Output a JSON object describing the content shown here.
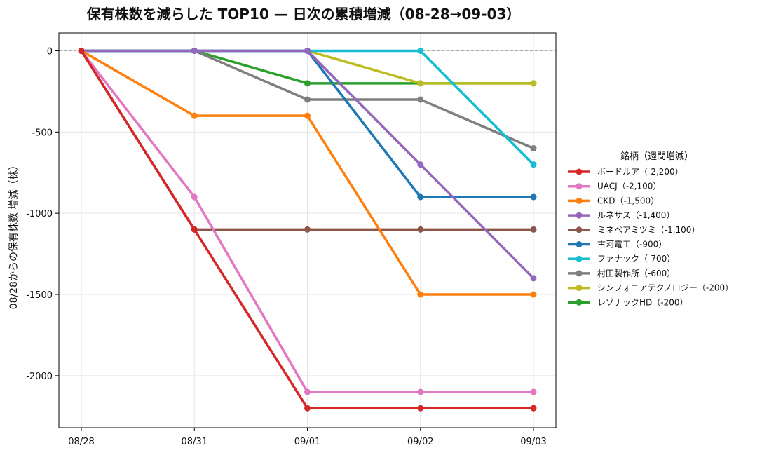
{
  "chart_data": {
    "type": "line",
    "title": "保有株数を減らした TOP10 — 日次の累積増減（08-28→09-03）",
    "xlabel": "",
    "ylabel": "08/28からの保有株数 増減（株）",
    "x": [
      "08/28",
      "08/31",
      "09/01",
      "09/02",
      "09/03"
    ],
    "yticks": [
      0,
      -500,
      -1000,
      -1500,
      -2000
    ],
    "ytick_labels": [
      "0",
      "-500",
      "-1000",
      "-1500",
      "-2000"
    ],
    "ylim": [
      -2320,
      110
    ],
    "grid": true,
    "baseline": 0,
    "legend": {
      "title": "銘柄（週間増減）",
      "placement": "right"
    },
    "series": [
      {
        "name": "ボードルア（-2,200）",
        "color": "#d62728",
        "values": [
          0,
          -1100,
          -2200,
          -2200,
          -2200
        ]
      },
      {
        "name": "UACJ（-2,100）",
        "color": "#e377c2",
        "values": [
          0,
          -900,
          -2100,
          -2100,
          -2100
        ]
      },
      {
        "name": "CKD（-1,500）",
        "color": "#ff7f0e",
        "values": [
          0,
          -400,
          -400,
          -1500,
          -1500
        ]
      },
      {
        "name": "ルネサス（-1,400）",
        "color": "#9467bd",
        "values": [
          0,
          0,
          0,
          -700,
          -1400
        ]
      },
      {
        "name": "ミネベアミツミ（-1,100）",
        "color": "#8c564b",
        "values": [
          0,
          -1100,
          -1100,
          -1100,
          -1100
        ]
      },
      {
        "name": "古河電工（-900）",
        "color": "#1f77b4",
        "values": [
          0,
          0,
          0,
          -900,
          -900
        ]
      },
      {
        "name": "ファナック（-700）",
        "color": "#17becf",
        "values": [
          0,
          0,
          0,
          0,
          -700
        ]
      },
      {
        "name": "村田製作所（-600）",
        "color": "#7f7f7f",
        "values": [
          0,
          0,
          -300,
          -300,
          -600
        ]
      },
      {
        "name": "シンフォニアテクノロジー（-200）",
        "color": "#bcbd22",
        "values": [
          0,
          0,
          0,
          -200,
          -200
        ]
      },
      {
        "name": "レゾナックHD（-200）",
        "color": "#2ca02c",
        "values": [
          0,
          0,
          -200,
          -200,
          -200
        ]
      }
    ]
  }
}
